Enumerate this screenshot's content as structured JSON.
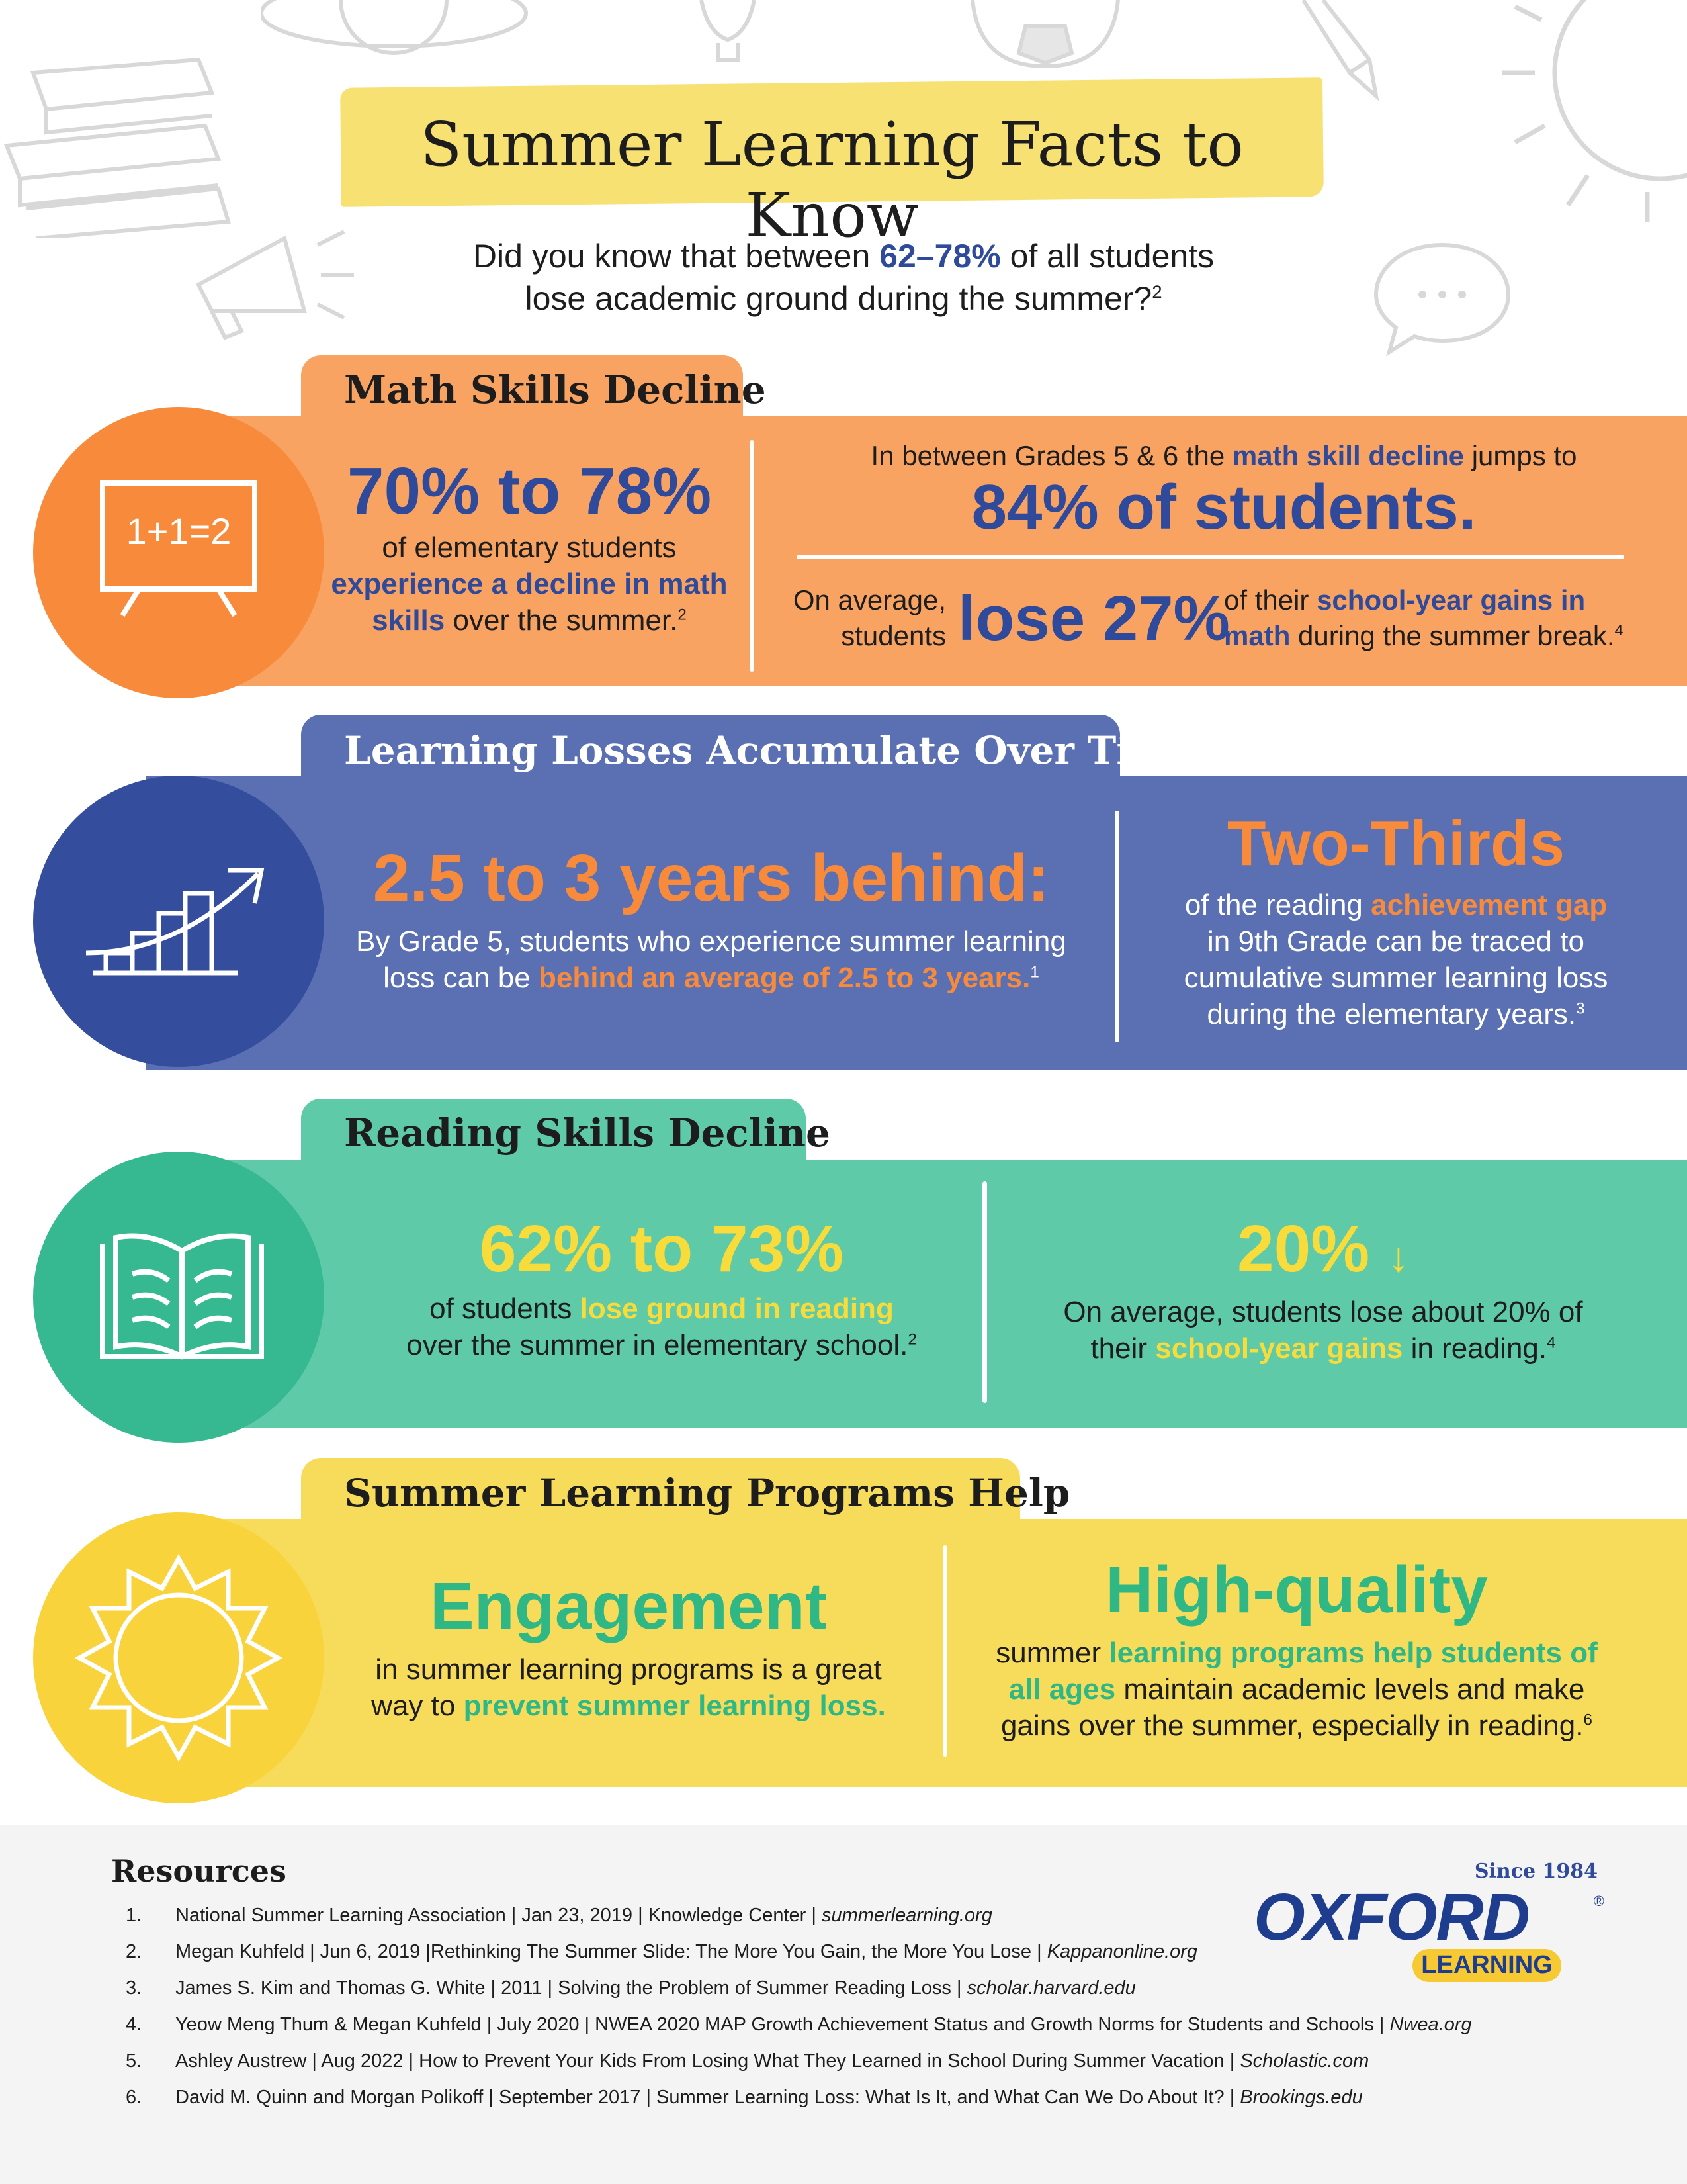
{
  "header": {
    "title": "Summer Learning Facts to Know",
    "intro_line1_pre": "Did you know that between ",
    "intro_highlight": "62–78%",
    "intro_line1_post": " of all students",
    "intro_line2": "lose academic ground during the summer?",
    "intro_ref": "2"
  },
  "math": {
    "tab": "Math Skills Decline",
    "board": "1+1=2",
    "left_big": "70% to 78%",
    "left_line1": "of elementary students",
    "left_hl": "experience a decline in math skills",
    "left_tail": " over the summer.",
    "left_ref": "2",
    "right_top_pre": "In between Grades 5 & 6 the ",
    "right_top_hl": "math skill decline",
    "right_top_post": " jumps to",
    "right_big": "84% of students.",
    "avg_pre": "On average, students",
    "avg_big": "lose 27%",
    "avg_post_pre": "of their ",
    "avg_hl1": "school-year gains in",
    "avg_hl2": "math",
    "avg_post_tail": " during the summer break.",
    "avg_ref": "4"
  },
  "accumulate": {
    "tab": "Learning Losses Accumulate Over Time",
    "left_big": "2.5 to 3 years behind:",
    "left_line1": "By Grade 5, students who experience summer learning",
    "left_line2_pre": "loss can be ",
    "left_hl": "behind an average of 2.5 to 3 years.",
    "left_ref": "1",
    "right_big": "Two-Thirds",
    "right_line1_pre": "of the reading ",
    "right_hl": "achievement gap",
    "right_line2": "in 9th Grade can be traced to",
    "right_line3": "cumulative summer learning loss",
    "right_line4": "during the elementary years.",
    "right_ref": "3"
  },
  "reading": {
    "tab": "Reading Skills Decline",
    "left_big": "62% to 73%",
    "left_line1_pre": "of students ",
    "left_hl": "lose ground in reading",
    "left_line2": "over the summer in elementary school.",
    "left_ref": "2",
    "right_big": "20%",
    "right_arrow": "↓",
    "right_line1": "On average, students lose about 20% of",
    "right_line2_pre": "their ",
    "right_hl": "school-year gains",
    "right_line2_post": " in reading.",
    "right_ref": "4"
  },
  "programs": {
    "tab": "Summer Learning Programs Help",
    "left_big": "Engagement",
    "left_line1": "in summer learning programs is a great",
    "left_line2_pre": "way to ",
    "left_hl": "prevent summer learning loss.",
    "right_big": "High-quality",
    "right_line1_pre": "summer ",
    "right_hl1": "learning programs help students of",
    "right_hl2": "all ages",
    "right_line2_post": " maintain academic levels and make",
    "right_line3": "gains over the summer, especially in reading.",
    "right_ref": "6"
  },
  "resources": {
    "title": "Resources",
    "items": [
      {
        "num": "1.",
        "text": "National Summer Learning Association | Jan 23, 2019 | Knowledge Center | ",
        "source": "summerlearning.org"
      },
      {
        "num": "2.",
        "text": "Megan Kuhfeld | Jun 6, 2019 |Rethinking The Summer Slide: The More You Gain, the More You Lose | ",
        "source": "Kappanonline.org"
      },
      {
        "num": "3.",
        "text": "James S. Kim and Thomas G. White | 2011 | Solving the Problem of Summer Reading Loss | ",
        "source": "scholar.harvard.edu"
      },
      {
        "num": "4.",
        "text": "Yeow Meng Thum &  Megan Kuhfeld | July 2020 | NWEA 2020 MAP Growth Achievement Status and Growth Norms for Students and Schools | ",
        "source": "Nwea.org"
      },
      {
        "num": "5.",
        "text": "Ashley Austrew | Aug 2022 | How to Prevent Your Kids From Losing What They Learned in School During Summer Vacation | ",
        "source": "Scholastic.com"
      },
      {
        "num": "6.",
        "text": "David M. Quinn and Morgan Polikoff | September 2017 | Summer Learning Loss: What Is It, and What Can We Do About It? | ",
        "source": "Brookings.edu"
      }
    ]
  },
  "logo": {
    "since": "Since 1984",
    "name": "OXFORD",
    "sub": "LEARNING",
    "registered": "®"
  },
  "colors": {
    "orange": "#f88a3c",
    "blue": "#2f4a9a",
    "green": "#2fb886",
    "yellow": "#f7dc5c"
  }
}
